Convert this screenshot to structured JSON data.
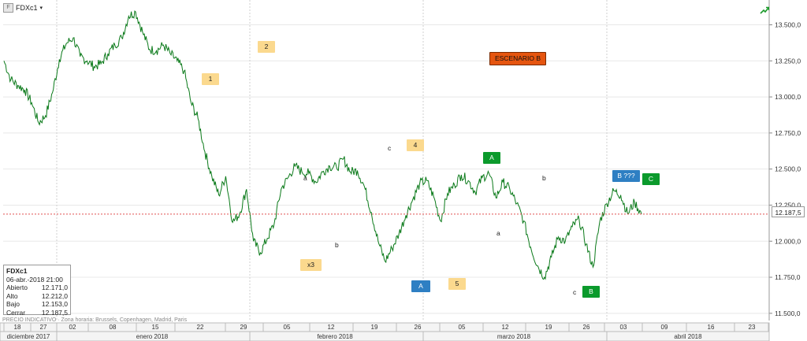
{
  "header": {
    "symbol": "FDXc1",
    "icon": "chart-icon",
    "menu_caret": "▾"
  },
  "price_tag": "12.187,5",
  "info_box": {
    "symbol": "FDXc1",
    "datetime": "06-abr.-2018 21:00",
    "rows": [
      {
        "label": "Abierto",
        "value": "12.171,0"
      },
      {
        "label": "Alto",
        "value": "12.212,0"
      },
      {
        "label": "Bajo",
        "value": "12.153,0"
      },
      {
        "label": "Cerrar",
        "value": "12.187,5"
      }
    ]
  },
  "footnote": "PRECIO INDICATIVO · Zona horaria: Brussels, Copenhagen, Madrid, Paris",
  "colors": {
    "line": "#0b7a1a",
    "last_price_line": "#e05050",
    "grid": "#e6e6e6",
    "orange": "#fbd98e",
    "green": "#0b9a2c",
    "blue": "#2e7fc3",
    "red": "#e5550f"
  },
  "chart_data": {
    "type": "line",
    "title": "",
    "ylim": [
      11450,
      13650
    ],
    "yticks": [
      "11.500,0",
      "11.750,0",
      "12.000,0",
      "12.250,0",
      "12.500,0",
      "12.750,0",
      "13.000,0",
      "13.250,0",
      "13.500,0"
    ],
    "day_labels": [
      "18",
      "27",
      "02",
      "08",
      "15",
      "22",
      "29",
      "05",
      "12",
      "19",
      "26",
      "05",
      "12",
      "19",
      "26",
      "03",
      "09",
      "16",
      "23"
    ],
    "month_labels": [
      "diciembre 2017",
      "enero 2018",
      "febrero 2018",
      "marzo 2018",
      "abril 2018"
    ],
    "last_price": 12187.5,
    "series": [
      {
        "values": [
          13250,
          13120,
          13080,
          13050,
          12960,
          12820,
          12870,
          13030,
          13260,
          13370,
          13410,
          13280,
          13250,
          13210,
          13230,
          13300,
          13360,
          13410,
          13560,
          13590,
          13450,
          13330,
          13320,
          13360,
          13300,
          13250,
          13180,
          12960,
          12850,
          12620,
          12450,
          12320,
          12450,
          12130,
          12190,
          12360,
          12000,
          11920,
          12020,
          12120,
          12360,
          12440,
          12520,
          12480,
          12470,
          12410,
          12480,
          12520,
          12510,
          12570,
          12480,
          12490,
          12380,
          12200,
          12000,
          11860,
          11950,
          12050,
          12180,
          12290,
          12400,
          12420,
          12310,
          12140,
          12330,
          12390,
          12460,
          12420,
          12340,
          12440,
          12470,
          12300,
          12410,
          12360,
          12260,
          12140,
          11960,
          11830,
          11750,
          11890,
          12030,
          12000,
          12100,
          12150,
          11980,
          11820,
          12140,
          12260,
          12350,
          12320,
          12190,
          12270,
          12187
        ]
      }
    ],
    "annotations": [
      {
        "text": "1",
        "style": "orange"
      },
      {
        "text": "2",
        "style": "orange"
      },
      {
        "text": "ESCENARIO B",
        "style": "red"
      },
      {
        "text": "x3",
        "style": "orange"
      },
      {
        "text": "4",
        "style": "orange"
      },
      {
        "text": "A",
        "style": "blue"
      },
      {
        "text": "5",
        "style": "orange"
      },
      {
        "text": "A",
        "style": "green"
      },
      {
        "text": "B ???",
        "style": "blue"
      },
      {
        "text": "C",
        "style": "green"
      },
      {
        "text": "B",
        "style": "green"
      },
      {
        "text": "a",
        "style": "text"
      },
      {
        "text": "b",
        "style": "text"
      },
      {
        "text": "c",
        "style": "text"
      },
      {
        "text": "a",
        "style": "text"
      },
      {
        "text": "b",
        "style": "text"
      },
      {
        "text": "c",
        "style": "text"
      }
    ]
  }
}
